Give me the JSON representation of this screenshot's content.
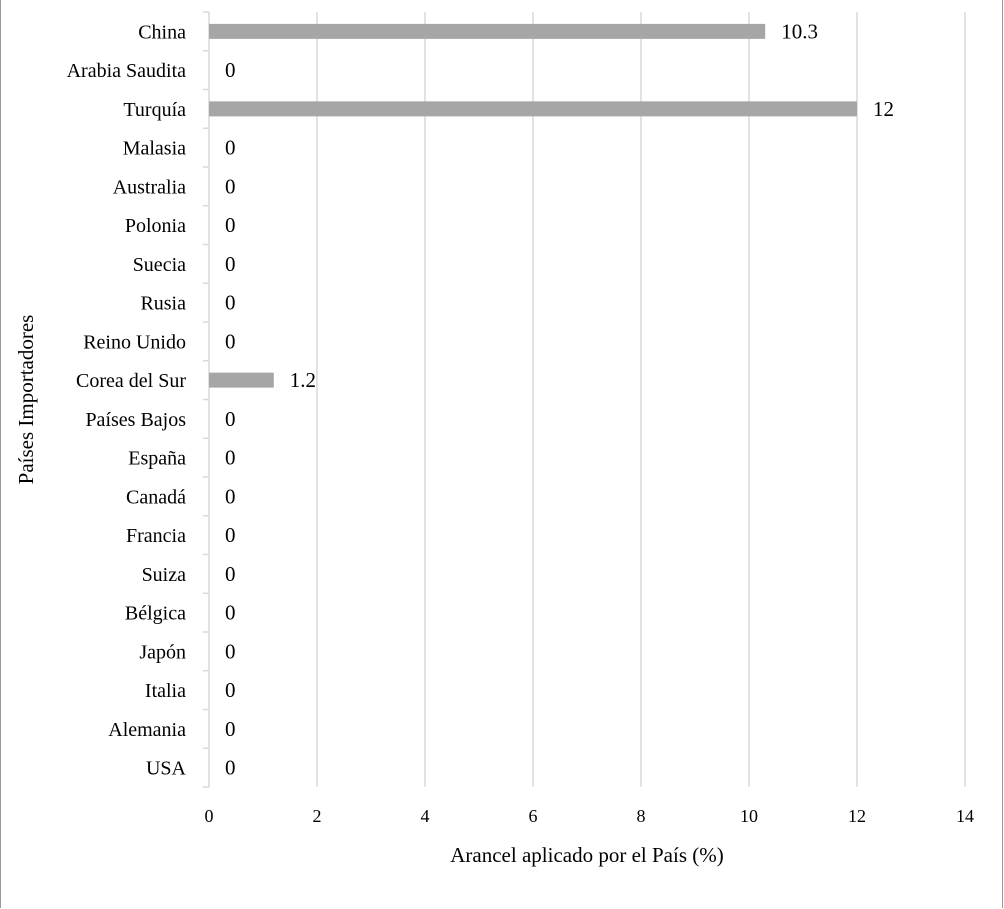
{
  "chart_data": {
    "type": "bar",
    "orientation": "horizontal",
    "categories": [
      "China",
      "Arabia Saudita",
      "Turquía",
      "Malasia",
      "Australia",
      "Polonia",
      "Suecia",
      "Rusia",
      "Reino Unido",
      "Corea del Sur",
      "Países Bajos",
      "España",
      "Canadá",
      "Francia",
      "Suiza",
      "Bélgica",
      "Japón",
      "Italia",
      "Alemania",
      "USA"
    ],
    "values": [
      10.3,
      0,
      12,
      0,
      0,
      0,
      0,
      0,
      0,
      1.2,
      0,
      0,
      0,
      0,
      0,
      0,
      0,
      0,
      0,
      0
    ],
    "data_labels": [
      "10.3",
      "0",
      "12",
      "0",
      "0",
      "0",
      "0",
      "0",
      "0",
      "1.2",
      "0",
      "0",
      "0",
      "0",
      "0",
      "0",
      "0",
      "0",
      "0",
      "0"
    ],
    "xlabel": "Arancel aplicado por el País (%)",
    "ylabel": "Países Importadores",
    "xlim": [
      0,
      14
    ],
    "xticks": [
      "0",
      "2",
      "4",
      "6",
      "8",
      "10",
      "12",
      "14"
    ],
    "grid": "vertical",
    "legend": "none",
    "bar_color": "#a6a6a6",
    "grid_color": "#d9d9d9"
  }
}
